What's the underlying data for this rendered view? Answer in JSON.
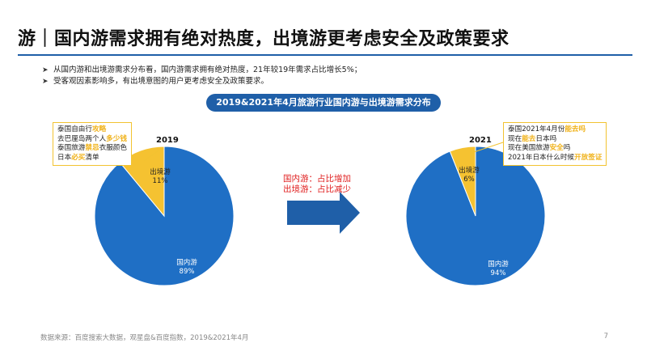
{
  "slide": {
    "title": "游｜国内游需求拥有绝对热度，出境游更考虑安全及政策要求",
    "bullets": [
      "从国内游和出境游需求分布看，国内游需求拥有绝对热度，21年较19年需求占比增长5%；",
      "受客观因素影响多，有出境意图的用户更考虑安全及政策要求。"
    ],
    "source": "数据来源：百度搜索大数据，观星盘&百度指数，2019&2021年4月",
    "page_number": "7",
    "middle_text": [
      "国内游：占比增加",
      "出境游：占比减少"
    ]
  },
  "notes": {
    "y2019": [
      [
        {
          "t": "泰国自由行",
          "h": false
        },
        {
          "t": "攻略",
          "h": true
        }
      ],
      [
        {
          "t": "去巴厘岛两个人",
          "h": false
        },
        {
          "t": "多少钱",
          "h": true
        }
      ],
      [
        {
          "t": "泰国旅游",
          "h": false
        },
        {
          "t": "禁忌",
          "h": true
        },
        {
          "t": "衣服颜色",
          "h": false
        }
      ],
      [
        {
          "t": "日本",
          "h": false
        },
        {
          "t": "必买",
          "h": true
        },
        {
          "t": "清单",
          "h": false
        }
      ]
    ],
    "y2021": [
      [
        {
          "t": "泰国2021年4月份",
          "h": false
        },
        {
          "t": "能去吗",
          "h": true
        }
      ],
      [
        {
          "t": "现在",
          "h": false
        },
        {
          "t": "能去",
          "h": true
        },
        {
          "t": "日本吗",
          "h": false
        }
      ],
      [
        {
          "t": "现在美国旅游",
          "h": false
        },
        {
          "t": "安全",
          "h": true
        },
        {
          "t": "吗",
          "h": false
        }
      ],
      [
        {
          "t": "2021年日本什么时候",
          "h": false
        },
        {
          "t": "开放签证",
          "h": true
        }
      ]
    ]
  },
  "colors": {
    "domestic": "#1f6fc5",
    "outbound": "#f5c231",
    "title_bar": "#1f5fa8",
    "highlight": "#f0b21a",
    "arrow": "#1f5fa8"
  },
  "chart_data": {
    "title": "2019&2021年4月旅游行业国内游与出境游需求分布",
    "charts": [
      {
        "type": "pie",
        "title": "2019",
        "slices": [
          {
            "label": "国内游",
            "value": 89,
            "display": "89%"
          },
          {
            "label": "出境游",
            "value": 11,
            "display": "11%"
          }
        ]
      },
      {
        "type": "pie",
        "title": "2021",
        "slices": [
          {
            "label": "国内游",
            "value": 94,
            "display": "94%"
          },
          {
            "label": "出境游",
            "value": 6,
            "display": "6%"
          }
        ]
      }
    ]
  }
}
